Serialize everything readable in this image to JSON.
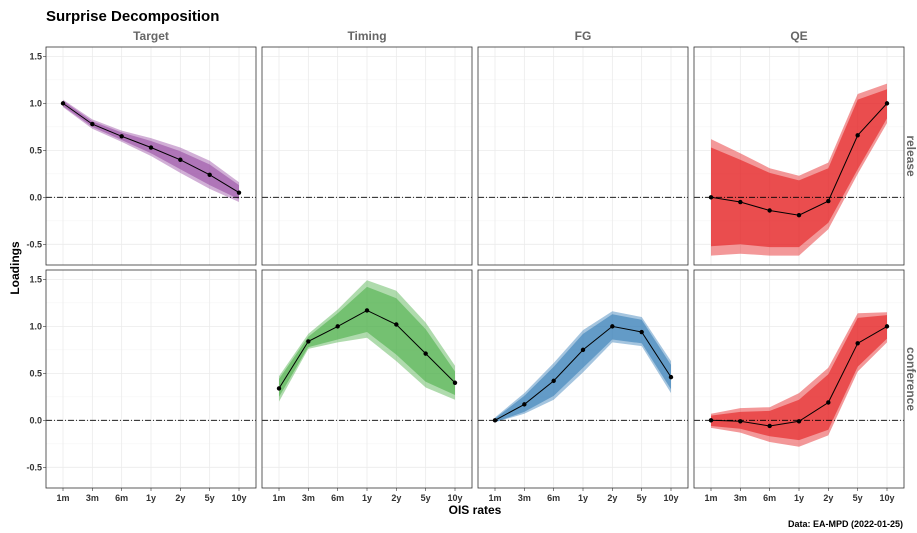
{
  "title": "Surprise Decomposition",
  "caption": "Data: EA-MPD (2022-01-25)",
  "chart_data": {
    "type": "line",
    "title": "Surprise Decomposition",
    "xlabel": "OIS rates",
    "ylabel": "Loadings",
    "categories": [
      "1m",
      "3m",
      "6m",
      "1y",
      "2y",
      "5y",
      "10y"
    ],
    "ylim": [
      -0.72,
      1.6
    ],
    "yticks": [
      -0.5,
      0.0,
      0.5,
      1.0,
      1.5
    ],
    "ytick_labels": [
      "-0.5",
      "0.0",
      "0.5",
      "1.0",
      "1.5"
    ],
    "grid": true,
    "reference_line": 0,
    "facet_cols": [
      "Target",
      "Timing",
      "FG",
      "QE"
    ],
    "facet_rows": [
      "release",
      "conference"
    ],
    "colors": {
      "Target": "#984ea3",
      "Timing": "#4daf4a",
      "FG": "#377eb8",
      "QE": "#e41a1c"
    },
    "series": [
      {
        "row": "release",
        "col": "Target",
        "values": [
          1.0,
          0.78,
          0.65,
          0.53,
          0.4,
          0.24,
          0.05
        ],
        "outer": [
          [
            0.96,
            1.04
          ],
          [
            0.73,
            0.83
          ],
          [
            0.59,
            0.71
          ],
          [
            0.44,
            0.63
          ],
          [
            0.26,
            0.53
          ],
          [
            0.09,
            0.39
          ],
          [
            -0.05,
            0.16
          ]
        ],
        "inner": [
          [
            0.97,
            1.03
          ],
          [
            0.75,
            0.81
          ],
          [
            0.61,
            0.69
          ],
          [
            0.47,
            0.6
          ],
          [
            0.3,
            0.49
          ],
          [
            0.13,
            0.35
          ],
          [
            -0.02,
            0.13
          ]
        ]
      },
      {
        "row": "conference",
        "col": "Timing",
        "values": [
          0.34,
          0.84,
          1.0,
          1.17,
          1.02,
          0.71,
          0.4
        ],
        "outer": [
          [
            0.2,
            0.47
          ],
          [
            0.76,
            0.92
          ],
          [
            0.83,
            1.18
          ],
          [
            0.88,
            1.49
          ],
          [
            0.63,
            1.38
          ],
          [
            0.35,
            1.04
          ],
          [
            0.22,
            0.58
          ]
        ],
        "inner": [
          [
            0.25,
            0.44
          ],
          [
            0.78,
            0.89
          ],
          [
            0.86,
            1.14
          ],
          [
            0.94,
            1.42
          ],
          [
            0.7,
            1.3
          ],
          [
            0.41,
            0.97
          ],
          [
            0.27,
            0.52
          ]
        ]
      },
      {
        "row": "conference",
        "col": "FG",
        "values": [
          0.0,
          0.17,
          0.42,
          0.75,
          1.0,
          0.94,
          0.46
        ],
        "outer": [
          [
            -0.02,
            0.03
          ],
          [
            0.07,
            0.29
          ],
          [
            0.22,
            0.61
          ],
          [
            0.51,
            0.96
          ],
          [
            0.83,
            1.16
          ],
          [
            0.79,
            1.1
          ],
          [
            0.29,
            0.63
          ]
        ],
        "inner": [
          [
            -0.02,
            0.02
          ],
          [
            0.09,
            0.26
          ],
          [
            0.26,
            0.57
          ],
          [
            0.56,
            0.92
          ],
          [
            0.86,
            1.13
          ],
          [
            0.82,
            1.07
          ],
          [
            0.33,
            0.59
          ]
        ]
      },
      {
        "row": "release",
        "col": "QE",
        "values": [
          0.0,
          -0.05,
          -0.14,
          -0.19,
          -0.04,
          0.66,
          1.0
        ],
        "outer": [
          [
            -0.62,
            0.62
          ],
          [
            -0.6,
            0.47
          ],
          [
            -0.62,
            0.31
          ],
          [
            -0.62,
            0.23
          ],
          [
            -0.34,
            0.37
          ],
          [
            0.25,
            1.1
          ],
          [
            0.79,
            1.21
          ]
        ],
        "inner": [
          [
            -0.52,
            0.53
          ],
          [
            -0.5,
            0.4
          ],
          [
            -0.53,
            0.26
          ],
          [
            -0.53,
            0.18
          ],
          [
            -0.27,
            0.31
          ],
          [
            0.3,
            1.04
          ],
          [
            0.84,
            1.15
          ]
        ]
      },
      {
        "row": "conference",
        "col": "QE",
        "values": [
          0.0,
          -0.01,
          -0.06,
          -0.01,
          0.19,
          0.82,
          1.0
        ],
        "outer": [
          [
            -0.08,
            0.07
          ],
          [
            -0.13,
            0.13
          ],
          [
            -0.23,
            0.14
          ],
          [
            -0.28,
            0.29
          ],
          [
            -0.16,
            0.56
          ],
          [
            0.52,
            1.14
          ],
          [
            0.83,
            1.15
          ]
        ],
        "inner": [
          [
            -0.06,
            0.05
          ],
          [
            -0.09,
            0.09
          ],
          [
            -0.17,
            0.1
          ],
          [
            -0.21,
            0.22
          ],
          [
            -0.1,
            0.49
          ],
          [
            0.57,
            1.09
          ],
          [
            0.87,
            1.12
          ]
        ]
      }
    ]
  }
}
